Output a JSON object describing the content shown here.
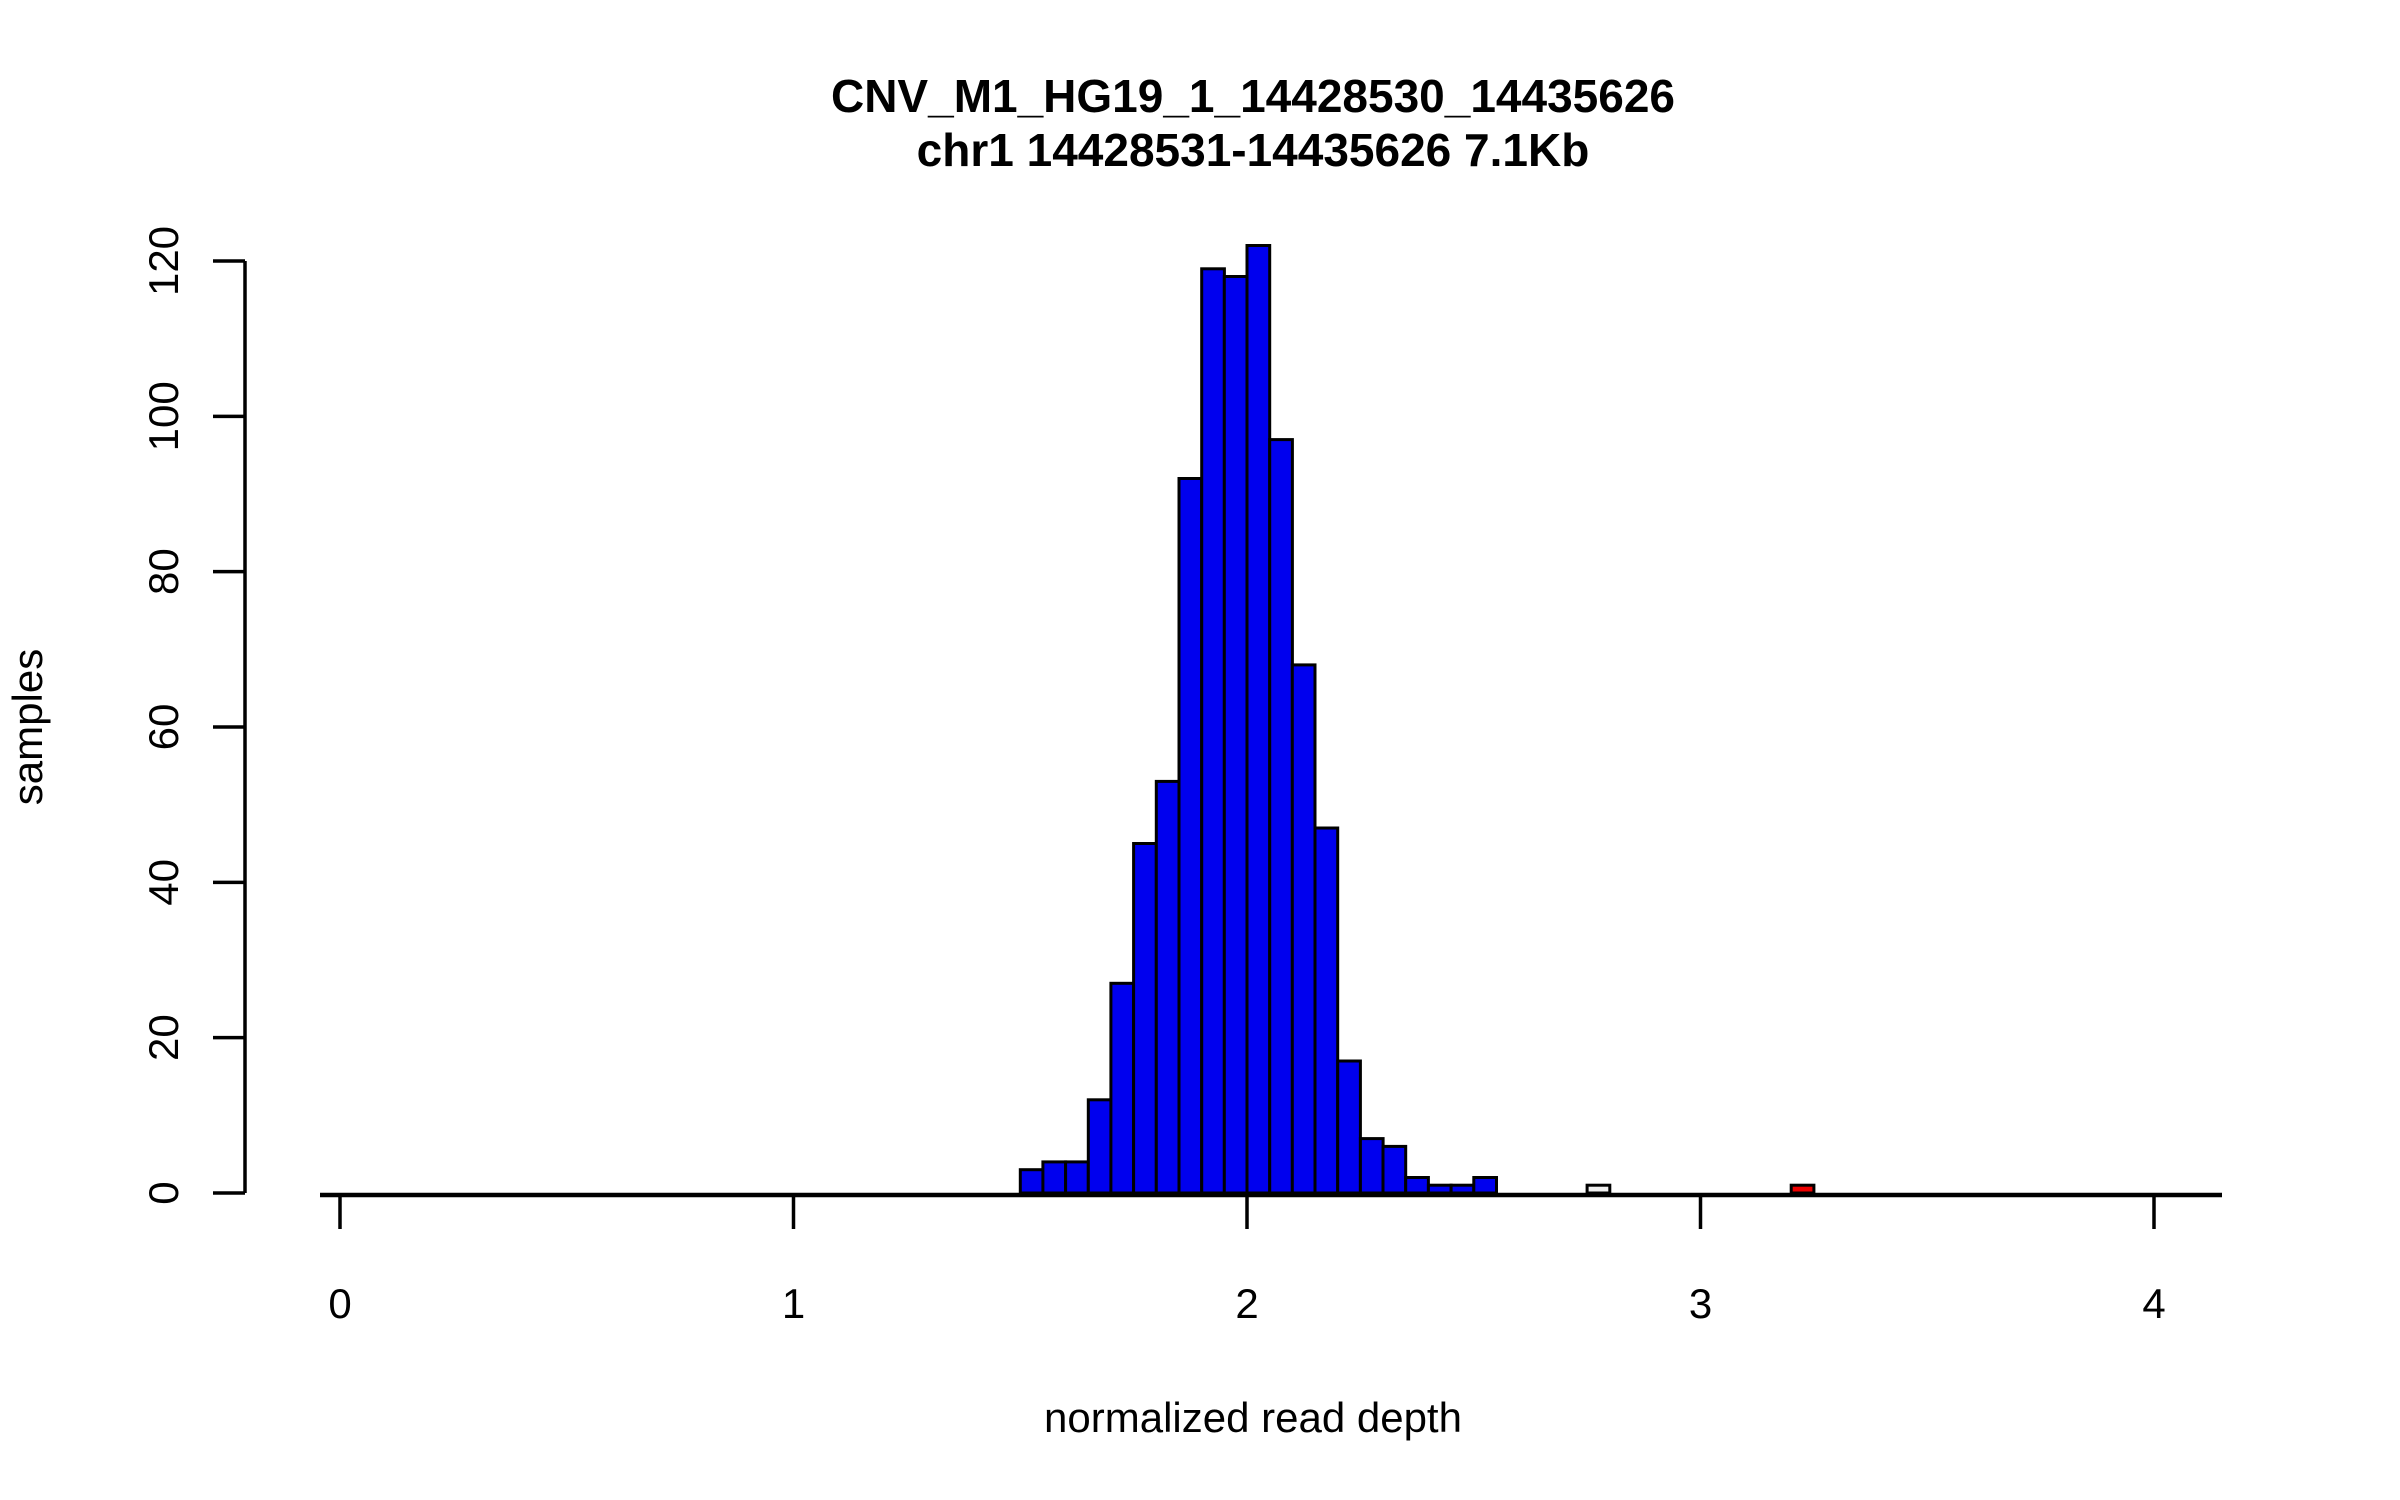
{
  "title": {
    "line1": "CNV_M1_HG19_1_14428530_14435626",
    "line2": "chr1 14428531-14435626 7.1Kb"
  },
  "axes": {
    "x": {
      "label": "normalized read depth",
      "ticks": [
        "0",
        "1",
        "2",
        "3",
        "4"
      ],
      "tick_values": [
        0,
        1,
        2,
        3,
        4
      ],
      "range": [
        0,
        4.15
      ]
    },
    "y": {
      "label": "samples",
      "ticks": [
        "0",
        "20",
        "40",
        "60",
        "80",
        "100",
        "120"
      ],
      "tick_values": [
        0,
        20,
        40,
        60,
        80,
        100,
        120
      ],
      "range": [
        0,
        122
      ]
    }
  },
  "colors": {
    "bar_default": "#0000EE",
    "bar_outlier_low": "#F0F0F0",
    "bar_outlier_high": "#EE0000",
    "bar_border": "#000000",
    "axis": "#000000"
  },
  "chart_data": {
    "type": "bar",
    "subtype": "histogram",
    "title": "CNV_M1_HG19_1_14428530_14435626",
    "subtitle": "chr1 14428531-14435626 7.1Kb",
    "xlabel": "normalized read depth",
    "ylabel": "samples",
    "xlim": [
      0,
      4.15
    ],
    "ylim": [
      0,
      122
    ],
    "grid": false,
    "legend": "none",
    "bin_width": 0.05,
    "bins": [
      {
        "start": 1.5,
        "count": 3
      },
      {
        "start": 1.55,
        "count": 4
      },
      {
        "start": 1.6,
        "count": 4
      },
      {
        "start": 1.65,
        "count": 12
      },
      {
        "start": 1.7,
        "count": 27
      },
      {
        "start": 1.75,
        "count": 45
      },
      {
        "start": 1.8,
        "count": 53
      },
      {
        "start": 1.85,
        "count": 92
      },
      {
        "start": 1.9,
        "count": 119
      },
      {
        "start": 1.95,
        "count": 118
      },
      {
        "start": 2.0,
        "count": 122
      },
      {
        "start": 2.05,
        "count": 97
      },
      {
        "start": 2.1,
        "count": 68
      },
      {
        "start": 2.15,
        "count": 47
      },
      {
        "start": 2.2,
        "count": 17
      },
      {
        "start": 2.25,
        "count": 7
      },
      {
        "start": 2.3,
        "count": 6
      },
      {
        "start": 2.35,
        "count": 2
      },
      {
        "start": 2.4,
        "count": 1
      },
      {
        "start": 2.45,
        "count": 1
      },
      {
        "start": 2.5,
        "count": 2
      },
      {
        "start": 2.75,
        "count": 1,
        "color": "#F0F0F0"
      },
      {
        "start": 3.2,
        "count": 1,
        "color": "#EE0000"
      }
    ]
  }
}
